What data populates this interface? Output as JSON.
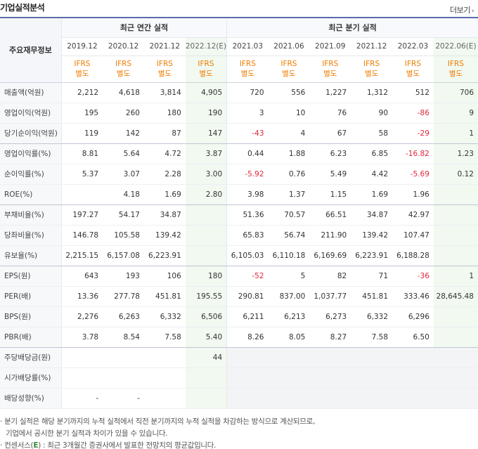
{
  "header": {
    "title": "기업실적분석",
    "more": "더보기"
  },
  "table": {
    "lead_label": "주요재무정보",
    "group_annual": "최근 연간 실적",
    "group_quarter": "최근 분기 실적",
    "periods": [
      "2019.12",
      "2020.12",
      "2021.12",
      "2022.12(E)",
      "2021.03",
      "2021.06",
      "2021.09",
      "2021.12",
      "2022.03",
      "2022.06(E)"
    ],
    "basis_top": "IFRS",
    "basis_bottom": "별도",
    "rows": [
      {
        "label": "매출액(억원)",
        "values": [
          "2,212",
          "4,618",
          "3,814",
          "4,905",
          "720",
          "556",
          "1,227",
          "1,312",
          "512",
          "706"
        ]
      },
      {
        "label": "영업이익(억원)",
        "values": [
          "195",
          "260",
          "180",
          "190",
          "3",
          "10",
          "76",
          "90",
          "-86",
          "9"
        ]
      },
      {
        "label": "당기순이익(억원)",
        "values": [
          "119",
          "142",
          "87",
          "147",
          "-43",
          "4",
          "67",
          "58",
          "-29",
          "1"
        ]
      },
      {
        "label": "영업이익률(%)",
        "values": [
          "8.81",
          "5.64",
          "4.72",
          "3.87",
          "0.44",
          "1.88",
          "6.23",
          "6.85",
          "-16.82",
          "1.23"
        ]
      },
      {
        "label": "순이익률(%)",
        "values": [
          "5.37",
          "3.07",
          "2.28",
          "3.00",
          "-5.92",
          "0.76",
          "5.49",
          "4.42",
          "-5.69",
          "0.12"
        ]
      },
      {
        "label": "ROE(%)",
        "values": [
          "",
          "4.18",
          "1.69",
          "2.80",
          "3.98",
          "1.37",
          "1.15",
          "1.69",
          "1.96",
          ""
        ]
      },
      {
        "label": "부채비율(%)",
        "values": [
          "197.27",
          "54.17",
          "34.87",
          "",
          "51.36",
          "70.57",
          "66.51",
          "34.87",
          "42.97",
          ""
        ]
      },
      {
        "label": "당좌비율(%)",
        "values": [
          "146.78",
          "105.58",
          "139.42",
          "",
          "65.83",
          "56.74",
          "211.90",
          "139.42",
          "107.47",
          ""
        ]
      },
      {
        "label": "유보율(%)",
        "values": [
          "2,215.15",
          "6,157.08",
          "6,223.91",
          "",
          "6,105.03",
          "6,110.18",
          "6,169.69",
          "6,223.91",
          "6,188.28",
          ""
        ]
      },
      {
        "label": "EPS(원)",
        "values": [
          "643",
          "193",
          "106",
          "180",
          "-52",
          "5",
          "82",
          "71",
          "-36",
          "1"
        ]
      },
      {
        "label": "PER(배)",
        "values": [
          "13.36",
          "277.78",
          "451.81",
          "195.55",
          "290.81",
          "837.00",
          "1,037.77",
          "451.81",
          "333.46",
          "28,645.48"
        ]
      },
      {
        "label": "BPS(원)",
        "values": [
          "2,276",
          "6,263",
          "6,332",
          "6,506",
          "6,211",
          "6,213",
          "6,273",
          "6,332",
          "6,296",
          ""
        ]
      },
      {
        "label": "PBR(배)",
        "values": [
          "3.78",
          "8.54",
          "7.58",
          "5.40",
          "8.26",
          "8.05",
          "8.27",
          "7.58",
          "6.50",
          ""
        ]
      },
      {
        "label": "주당배당금(원)",
        "values": [
          "",
          "",
          "",
          "44",
          "",
          "",
          "",
          "",
          "",
          ""
        ]
      },
      {
        "label": "시가배당률(%)",
        "values": [
          "",
          "",
          "",
          "",
          "",
          "",
          "",
          "",
          "",
          ""
        ]
      },
      {
        "label": "배당성향(%)",
        "values": [
          "-",
          "-",
          "",
          "",
          "",
          "",
          "",
          "",
          "",
          ""
        ]
      }
    ]
  },
  "notes": {
    "line1": "· 분기 실적은 해당 분기까지의 누적 실적에서 직전 분기까지의 누적 실적을 차감하는 방식으로 계산되므로,",
    "line2": "기업에서 공시한 분기 실적과 차이가 있을 수 있습니다.",
    "line3_prefix": "· 컨센서스(",
    "line3_e": "E",
    "line3_suffix": ") : 최근 3개월간 증권사에서 발표한 전망치의 평균값입니다."
  }
}
